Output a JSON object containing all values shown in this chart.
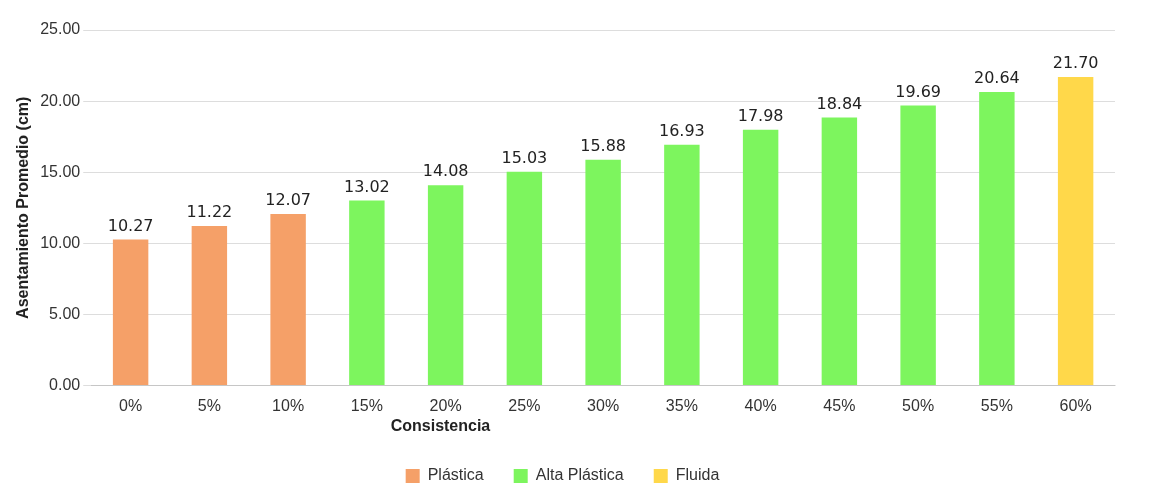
{
  "chart_data": {
    "type": "bar",
    "ylabel": "Asentamiento Promedio (cm)",
    "legend_title": "Consistencia",
    "categories": [
      "0%",
      "5%",
      "10%",
      "15%",
      "20%",
      "25%",
      "30%",
      "35%",
      "40%",
      "45%",
      "50%",
      "55%",
      "60%"
    ],
    "stacked": true,
    "series": [
      {
        "name": "Plástica",
        "color": "#f5a068",
        "values": [
          10.27,
          11.22,
          12.07,
          null,
          null,
          null,
          null,
          null,
          null,
          null,
          null,
          null,
          null
        ],
        "value_labels": [
          "10.27",
          "11.22",
          "12.07",
          null,
          null,
          null,
          null,
          null,
          null,
          null,
          null,
          null,
          null
        ]
      },
      {
        "name": "Alta Plástica",
        "color": "#7df55e",
        "values": [
          null,
          null,
          null,
          13.02,
          14.08,
          15.03,
          15.88,
          16.93,
          17.98,
          18.84,
          19.69,
          20.64,
          null
        ],
        "value_labels": [
          null,
          null,
          null,
          "13.02",
          "14.08",
          "15.03",
          "15.88",
          "16.93",
          "17.98",
          "18.84",
          "19.69",
          "20.64",
          null
        ]
      },
      {
        "name": "Fluida",
        "color": "#ffd84a",
        "values": [
          null,
          null,
          null,
          null,
          null,
          null,
          null,
          null,
          null,
          null,
          null,
          null,
          21.7
        ],
        "value_labels": [
          null,
          null,
          null,
          null,
          null,
          null,
          null,
          null,
          null,
          null,
          null,
          null,
          "21.70"
        ]
      }
    ],
    "ylim": [
      0,
      25
    ],
    "yticks": [
      {
        "value": 0,
        "label": "0.00"
      },
      {
        "value": 5,
        "label": "5.00"
      },
      {
        "value": 10,
        "label": "10.00"
      },
      {
        "value": 15,
        "label": "15.00"
      },
      {
        "value": 20,
        "label": "20.00"
      },
      {
        "value": 25,
        "label": "25.00"
      }
    ],
    "grid": "y",
    "legend": "bottom"
  }
}
